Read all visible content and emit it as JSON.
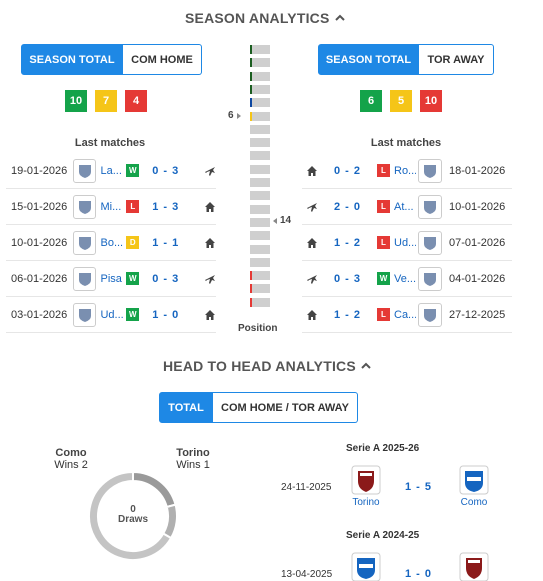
{
  "season": {
    "title": "SEASON ANALYTICS",
    "home": {
      "tab_total": "SEASON TOTAL",
      "tab_venue": "COM HOME",
      "wins": "10",
      "draws": "7",
      "losses": "4",
      "last_matches_title": "Last matches",
      "matches": [
        {
          "date": "19-01-2026",
          "team": "La...",
          "result": "W",
          "score": "0 - 3",
          "venue": "away"
        },
        {
          "date": "15-01-2026",
          "team": "Mi...",
          "result": "L",
          "score": "1 - 3",
          "venue": "home"
        },
        {
          "date": "10-01-2026",
          "team": "Bo...",
          "result": "D",
          "score": "1 - 1",
          "venue": "home"
        },
        {
          "date": "06-01-2026",
          "team": "Pisa",
          "result": "W",
          "score": "0 - 3",
          "venue": "away"
        },
        {
          "date": "03-01-2026",
          "team": "Ud...",
          "result": "W",
          "score": "1 - 0",
          "venue": "home"
        }
      ]
    },
    "away": {
      "tab_total": "SEASON TOTAL",
      "tab_venue": "TOR AWAY",
      "wins": "6",
      "draws": "5",
      "losses": "10",
      "last_matches_title": "Last matches",
      "matches": [
        {
          "date": "18-01-2026",
          "team": "Ro...",
          "result": "L",
          "score": "0 - 2",
          "venue": "home"
        },
        {
          "date": "10-01-2026",
          "team": "At...",
          "result": "L",
          "score": "2 - 0",
          "venue": "away"
        },
        {
          "date": "07-01-2026",
          "team": "Ud...",
          "result": "L",
          "score": "1 - 2",
          "venue": "home"
        },
        {
          "date": "04-01-2026",
          "team": "Ve...",
          "result": "W",
          "score": "0 - 3",
          "venue": "away"
        },
        {
          "date": "27-12-2025",
          "team": "Ca...",
          "result": "L",
          "score": "1 - 2",
          "venue": "home"
        }
      ]
    },
    "position": {
      "label": "Position",
      "home_position": "6",
      "away_position": "14",
      "total_slots": 20,
      "edge_colors": [
        "#1b5e20",
        "#1b5e20",
        "#1b5e20",
        "#1b5e20",
        "#0d47a1",
        "#f5c518",
        "",
        "",
        "",
        "",
        "",
        "",
        "",
        "",
        "",
        "",
        "",
        "#e53935",
        "#e53935",
        "#e53935"
      ]
    }
  },
  "h2h": {
    "title": "HEAD TO HEAD ANALYTICS",
    "tab_total": "TOTAL",
    "tab_venue": "COM HOME / TOR AWAY",
    "home_team": "Como",
    "home_wins": "Wins 2",
    "away_team": "Torino",
    "away_wins": "Wins 1",
    "draws_count": "0",
    "draws_label": "Draws",
    "matches": [
      {
        "season": "Serie A 2025-26",
        "date": "24-11-2025",
        "home": "Torino",
        "score": "1 - 5",
        "away": "Como"
      },
      {
        "season": "Serie A 2024-25",
        "date": "13-04-2025",
        "home": "",
        "score": "1 - 0",
        "away": ""
      }
    ]
  },
  "colors": {
    "accent": "#1e88e5",
    "win": "#14a34a",
    "draw": "#f5c518",
    "loss": "#e53935"
  }
}
